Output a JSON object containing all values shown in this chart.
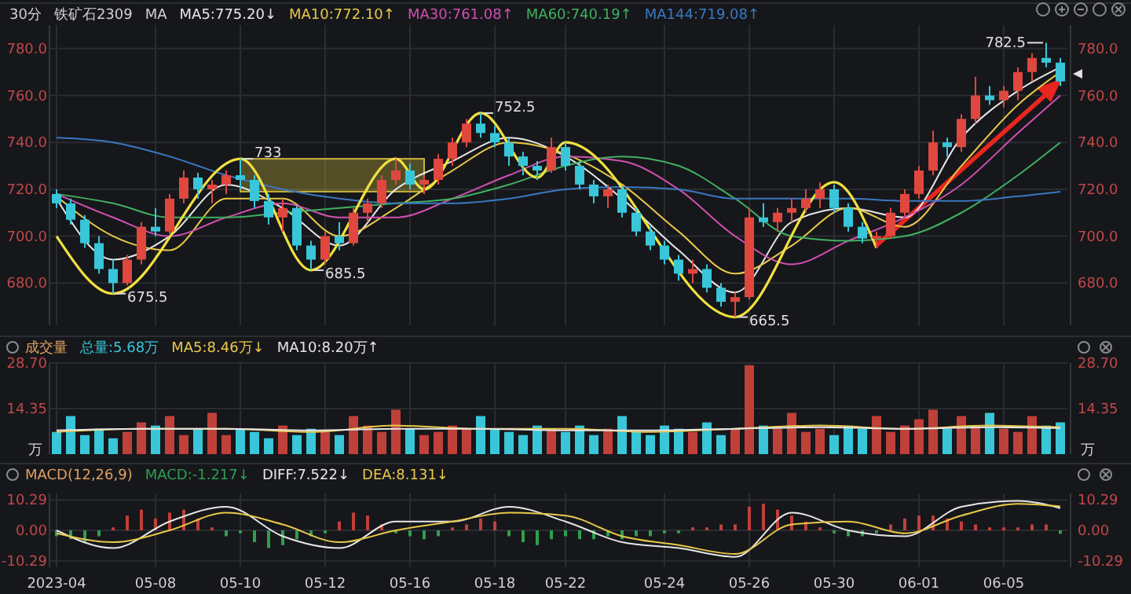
{
  "chart_data": [
    {
      "type": "candlestick",
      "title": "铁矿石2309",
      "subtitle": "30分",
      "legend_title": "MA",
      "legend": "top left",
      "grid": true,
      "tick_labels": "y",
      "categories": [
        null,
        null,
        null,
        null,
        null,
        null,
        null,
        null,
        null,
        null,
        null,
        null,
        null,
        null,
        null,
        null,
        null,
        null,
        null,
        null,
        null,
        null,
        null,
        null,
        null,
        null,
        null,
        null,
        null,
        null,
        null,
        null,
        null,
        null,
        null,
        null,
        null,
        null,
        null,
        null,
        null,
        null,
        null,
        null,
        null,
        null,
        null,
        null,
        null,
        null,
        null,
        null,
        null,
        null,
        null,
        null,
        null,
        null,
        null,
        null,
        null,
        null,
        null,
        null,
        null,
        null,
        null,
        null,
        null,
        null,
        null,
        null
      ],
      "ohlc": [
        [
          718,
          720,
          712,
          714
        ],
        [
          714,
          716,
          705,
          707
        ],
        [
          707,
          709,
          695,
          697
        ],
        [
          697,
          700,
          684,
          686
        ],
        [
          686,
          690,
          675.5,
          680
        ],
        [
          680,
          692,
          679,
          690
        ],
        [
          690,
          706,
          688,
          704
        ],
        [
          704,
          712,
          700,
          702
        ],
        [
          702,
          718,
          701,
          716
        ],
        [
          716,
          728,
          714,
          725
        ],
        [
          725,
          727,
          716,
          720
        ],
        [
          720,
          724,
          714,
          722
        ],
        [
          722,
          728,
          718,
          726
        ],
        [
          726,
          733,
          720,
          724
        ],
        [
          724,
          726,
          712,
          715
        ],
        [
          715,
          718,
          705,
          708
        ],
        [
          708,
          716,
          702,
          712
        ],
        [
          712,
          713,
          694,
          696
        ],
        [
          696,
          698,
          685.5,
          690
        ],
        [
          690,
          702,
          688,
          700
        ],
        [
          700,
          706,
          694,
          697
        ],
        [
          697,
          712,
          696,
          710
        ],
        [
          710,
          716,
          706,
          714
        ],
        [
          714,
          726,
          712,
          724
        ],
        [
          724,
          733,
          722,
          728
        ],
        [
          728,
          731,
          720,
          722
        ],
        [
          722,
          726,
          718,
          724
        ],
        [
          724,
          735,
          722,
          733
        ],
        [
          733,
          742,
          730,
          740
        ],
        [
          740,
          750,
          738,
          748
        ],
        [
          748,
          752.5,
          742,
          744
        ],
        [
          744,
          747,
          738,
          740
        ],
        [
          740,
          742,
          730,
          734
        ],
        [
          734,
          736,
          726,
          730
        ],
        [
          730,
          732,
          724,
          728
        ],
        [
          728,
          742,
          727,
          738
        ],
        [
          738,
          740,
          728,
          730
        ],
        [
          730,
          732,
          720,
          722
        ],
        [
          722,
          724,
          714,
          717
        ],
        [
          717,
          722,
          712,
          720
        ],
        [
          720,
          721,
          708,
          710
        ],
        [
          710,
          712,
          700,
          702
        ],
        [
          702,
          704,
          694,
          696
        ],
        [
          696,
          698,
          688,
          690
        ],
        [
          690,
          692,
          681,
          684
        ],
        [
          684,
          690,
          680,
          686
        ],
        [
          686,
          688,
          676,
          678
        ],
        [
          678,
          680,
          670,
          672
        ],
        [
          672,
          676,
          665.5,
          674
        ],
        [
          674,
          712,
          673,
          708
        ],
        [
          708,
          714,
          704,
          706
        ],
        [
          706,
          712,
          702,
          710
        ],
        [
          710,
          716,
          706,
          712
        ],
        [
          712,
          720,
          710,
          716
        ],
        [
          716,
          723,
          712,
          720
        ],
        [
          720,
          722,
          710,
          712
        ],
        [
          712,
          714,
          702,
          704
        ],
        [
          704,
          706,
          697,
          699
        ],
        [
          699,
          702,
          695,
          700
        ],
        [
          700,
          712,
          699,
          710
        ],
        [
          710,
          720,
          708,
          718
        ],
        [
          718,
          730,
          716,
          728
        ],
        [
          728,
          745,
          726,
          740
        ],
        [
          740,
          742,
          734,
          738
        ],
        [
          738,
          752,
          736,
          750
        ],
        [
          750,
          768,
          748,
          760
        ],
        [
          760,
          764,
          756,
          758
        ],
        [
          758,
          764,
          755,
          762
        ],
        [
          762,
          772,
          758,
          770
        ],
        [
          770,
          778,
          766,
          776
        ],
        [
          776,
          782.5,
          772,
          774
        ],
        [
          774,
          776,
          764,
          766
        ]
      ],
      "colors": [
        "#38c6d8",
        "#38c6d8",
        "#38c6d8",
        "#38c6d8",
        "#38c6d8",
        "#e0473e",
        "#e0473e",
        "#38c6d8",
        "#e0473e",
        "#e0473e",
        "#38c6d8",
        "#e0473e",
        "#e0473e",
        "#38c6d8",
        "#38c6d8",
        "#38c6d8",
        "#e0473e",
        "#38c6d8",
        "#38c6d8",
        "#e0473e",
        "#38c6d8",
        "#e0473e",
        "#e0473e",
        "#e0473e",
        "#e0473e",
        "#38c6d8",
        "#e0473e",
        "#e0473e",
        "#e0473e",
        "#e0473e",
        "#38c6d8",
        "#38c6d8",
        "#38c6d8",
        "#38c6d8",
        "#38c6d8",
        "#e0473e",
        "#38c6d8",
        "#38c6d8",
        "#38c6d8",
        "#e0473e",
        "#38c6d8",
        "#38c6d8",
        "#38c6d8",
        "#38c6d8",
        "#38c6d8",
        "#e0473e",
        "#38c6d8",
        "#38c6d8",
        "#e0473e",
        "#e0473e",
        "#38c6d8",
        "#e0473e",
        "#e0473e",
        "#e0473e",
        "#e0473e",
        "#38c6d8",
        "#38c6d8",
        "#38c6d8",
        "#e0473e",
        "#e0473e",
        "#e0473e",
        "#e0473e",
        "#e0473e",
        "#38c6d8",
        "#e0473e",
        "#e0473e",
        "#38c6d8",
        "#e0473e",
        "#e0473e",
        "#e0473e",
        "#38c6d8",
        "#38c6d8"
      ],
      "series": [
        {
          "type": "line",
          "name": "MA5:775.20↓",
          "color": "#e6e6e6",
          "values": [
            716,
            null,
            null,
            null,
            690,
            null,
            null,
            null,
            700,
            null,
            null,
            null,
            722,
            null,
            null,
            null,
            712,
            null,
            null,
            null,
            696,
            null,
            null,
            null,
            720,
            null,
            null,
            null,
            732,
            null,
            null,
            null,
            742,
            null,
            null,
            null,
            734,
            null,
            null,
            null,
            716,
            null,
            null,
            null,
            694,
            null,
            null,
            null,
            676,
            null,
            null,
            null,
            706,
            null,
            null,
            null,
            712,
            null,
            null,
            null,
            708,
            null,
            null,
            null,
            742,
            null,
            null,
            null,
            762,
            null,
            null,
            772
          ]
        },
        {
          "type": "line",
          "name": "MA10:772.10↑",
          "color": "#e8c848",
          "values": [
            717,
            null,
            null,
            null,
            700,
            null,
            null,
            null,
            694,
            null,
            null,
            null,
            716,
            null,
            null,
            null,
            716,
            null,
            null,
            null,
            700,
            null,
            null,
            null,
            712,
            null,
            null,
            null,
            728,
            null,
            null,
            null,
            740,
            null,
            null,
            null,
            735,
            null,
            null,
            null,
            722,
            null,
            null,
            null,
            702,
            null,
            null,
            null,
            684,
            null,
            null,
            null,
            696,
            null,
            null,
            null,
            712,
            null,
            null,
            null,
            704,
            null,
            null,
            null,
            730,
            null,
            null,
            null,
            756,
            null,
            null,
            770
          ]
        },
        {
          "type": "line",
          "name": "MA30:761.08↑",
          "color": "#d050b0",
          "values": [
            718,
            null,
            null,
            null,
            708,
            null,
            null,
            null,
            700,
            null,
            null,
            null,
            708,
            null,
            null,
            null,
            714,
            null,
            null,
            null,
            708,
            null,
            null,
            null,
            708,
            null,
            null,
            null,
            716,
            null,
            null,
            null,
            726,
            null,
            null,
            null,
            734,
            null,
            null,
            null,
            732,
            null,
            null,
            null,
            720,
            null,
            null,
            null,
            700,
            null,
            null,
            null,
            688,
            null,
            null,
            null,
            698,
            null,
            null,
            null,
            708,
            null,
            null,
            null,
            722,
            null,
            null,
            null,
            744,
            null,
            null,
            760
          ]
        },
        {
          "type": "line",
          "name": "MA60:740.19↑",
          "color": "#40b060",
          "values": [
            718,
            null,
            null,
            null,
            714,
            null,
            null,
            null,
            708,
            null,
            null,
            null,
            708,
            null,
            null,
            null,
            710,
            null,
            null,
            null,
            712,
            null,
            null,
            null,
            714,
            null,
            null,
            null,
            716,
            null,
            null,
            null,
            722,
            null,
            null,
            null,
            730,
            null,
            null,
            null,
            734,
            null,
            null,
            null,
            730,
            null,
            null,
            null,
            716,
            null,
            null,
            null,
            700,
            null,
            null,
            null,
            698,
            null,
            null,
            null,
            700,
            null,
            null,
            null,
            710,
            null,
            null,
            null,
            726,
            null,
            null,
            740
          ]
        },
        {
          "type": "line",
          "name": "MA144:719.08↑",
          "color": "#3a78c0",
          "values": [
            742,
            null,
            null,
            null,
            740,
            null,
            null,
            null,
            734,
            null,
            null,
            null,
            726,
            null,
            null,
            null,
            720,
            null,
            null,
            null,
            716,
            null,
            null,
            null,
            714,
            null,
            null,
            null,
            714,
            null,
            null,
            null,
            716,
            null,
            null,
            null,
            720,
            null,
            null,
            null,
            721,
            null,
            null,
            null,
            720,
            null,
            null,
            null,
            716,
            null,
            null,
            null,
            716,
            null,
            null,
            null,
            716,
            null,
            null,
            null,
            715,
            null,
            null,
            null,
            715,
            null,
            null,
            null,
            717,
            null,
            null,
            719
          ]
        },
        {
          "type": "line",
          "color": "#f0e040",
          "values": [
            700,
            null,
            null,
            null,
            675.5,
            null,
            null,
            null,
            null,
            null,
            null,
            null,
            null,
            733,
            null,
            null,
            null,
            null,
            685.5,
            null,
            null,
            null,
            null,
            null,
            733,
            null,
            720,
            null,
            null,
            null,
            752.5,
            null,
            null,
            null,
            725,
            null,
            740,
            null,
            null,
            null,
            null,
            null,
            null,
            null,
            null,
            null,
            null,
            null,
            665.5,
            null,
            null,
            null,
            null,
            null,
            null,
            723,
            null,
            null,
            695,
            null,
            null,
            null,
            null,
            null,
            null,
            null,
            null,
            null,
            null,
            null,
            null,
            null
          ]
        }
      ],
      "ylim": [
        662,
        790
      ],
      "yticks": [
        {
          "value": 680,
          "label": "680.0"
        },
        {
          "value": 700,
          "label": "700.0"
        },
        {
          "value": 720,
          "label": "720.0"
        },
        {
          "value": 740,
          "label": "740.0"
        },
        {
          "value": 760,
          "label": "760.0"
        },
        {
          "value": 780,
          "label": "780.0"
        }
      ],
      "bands": [
        {
          "axis": "y",
          "from": 719,
          "to": 733,
          "color": "#c8b43c"
        }
      ],
      "annotations": [
        "675.5",
        "733",
        "685.5",
        "752.5",
        "665.5",
        "782.5"
      ]
    },
    {
      "type": "bar",
      "title": "成交量",
      "legend": "top left",
      "grid": true,
      "tick_labels": "y",
      "ylabel": "万",
      "categories": [
        null,
        null,
        null,
        null,
        null,
        null,
        null,
        null,
        null,
        null,
        null,
        null,
        null,
        null,
        null,
        null,
        null,
        null,
        null,
        null,
        null,
        null,
        null,
        null,
        null,
        null,
        null,
        null,
        null,
        null,
        null,
        null,
        null,
        null,
        null,
        null,
        null,
        null,
        null,
        null,
        null,
        null,
        null,
        null,
        null,
        null,
        null,
        null,
        null,
        null,
        null,
        null,
        null,
        null,
        null,
        null,
        null,
        null,
        null,
        null,
        null,
        null,
        null,
        null,
        null,
        null,
        null,
        null,
        null,
        null,
        null,
        null
      ],
      "series": [
        {
          "type": "bar",
          "name": "总量:5.68万",
          "colors": [
            "#38c6d8",
            "#38c6d8",
            "#38c6d8",
            "#38c6d8",
            "#38c6d8",
            "#c0403a",
            "#c0403a",
            "#38c6d8",
            "#c0403a",
            "#c0403a",
            "#38c6d8",
            "#c0403a",
            "#c0403a",
            "#38c6d8",
            "#38c6d8",
            "#38c6d8",
            "#c0403a",
            "#38c6d8",
            "#38c6d8",
            "#c0403a",
            "#38c6d8",
            "#c0403a",
            "#c0403a",
            "#c0403a",
            "#c0403a",
            "#38c6d8",
            "#c0403a",
            "#c0403a",
            "#c0403a",
            "#c0403a",
            "#38c6d8",
            "#38c6d8",
            "#38c6d8",
            "#38c6d8",
            "#38c6d8",
            "#c0403a",
            "#38c6d8",
            "#38c6d8",
            "#38c6d8",
            "#c0403a",
            "#38c6d8",
            "#38c6d8",
            "#38c6d8",
            "#38c6d8",
            "#38c6d8",
            "#c0403a",
            "#38c6d8",
            "#38c6d8",
            "#c0403a",
            "#c0403a",
            "#38c6d8",
            "#c0403a",
            "#c0403a",
            "#c0403a",
            "#c0403a",
            "#38c6d8",
            "#38c6d8",
            "#38c6d8",
            "#c0403a",
            "#c0403a",
            "#c0403a",
            "#c0403a",
            "#c0403a",
            "#38c6d8",
            "#c0403a",
            "#c0403a",
            "#38c6d8",
            "#c0403a",
            "#c0403a",
            "#c0403a",
            "#38c6d8",
            "#38c6d8"
          ],
          "values": [
            7,
            12,
            6,
            8,
            5,
            7,
            10,
            9,
            12,
            6,
            8,
            13,
            6,
            8,
            7,
            5,
            9,
            6,
            8,
            7,
            6,
            12,
            9,
            7,
            14,
            8,
            6,
            7,
            9,
            8,
            12,
            8,
            7,
            6,
            9,
            8,
            7,
            9,
            6,
            8,
            12,
            7,
            6,
            9,
            8,
            7,
            10,
            6,
            8,
            28,
            9,
            8,
            13,
            7,
            8,
            6,
            9,
            8,
            12,
            7,
            9,
            11,
            14,
            8,
            12,
            9,
            13,
            8,
            7,
            12,
            9,
            10
          ]
        },
        {
          "type": "line",
          "name": "MA5:8.46万↓",
          "color": "#e8c848",
          "values": [
            7,
            null,
            null,
            null,
            null,
            null,
            8,
            null,
            null,
            null,
            null,
            null,
            8,
            null,
            null,
            null,
            null,
            null,
            7,
            null,
            null,
            null,
            null,
            null,
            9,
            null,
            null,
            null,
            null,
            null,
            8,
            null,
            null,
            null,
            null,
            null,
            8,
            null,
            null,
            null,
            null,
            null,
            7,
            null,
            null,
            null,
            null,
            null,
            8,
            null,
            null,
            null,
            null,
            null,
            9,
            null,
            null,
            null,
            null,
            null,
            8,
            null,
            null,
            null,
            null,
            null,
            9,
            null,
            null,
            null,
            null,
            8.5
          ]
        },
        {
          "type": "line",
          "name": "MA10:8.20万↑",
          "color": "#e6e6e6",
          "values": [
            7.5,
            null,
            null,
            null,
            null,
            null,
            8,
            null,
            null,
            null,
            null,
            null,
            8,
            null,
            null,
            null,
            null,
            null,
            7.5,
            null,
            null,
            null,
            null,
            null,
            8,
            null,
            null,
            null,
            null,
            null,
            8,
            null,
            null,
            null,
            null,
            null,
            7.5,
            null,
            null,
            null,
            null,
            null,
            7.5,
            null,
            null,
            null,
            null,
            null,
            8,
            null,
            null,
            null,
            null,
            null,
            8.5,
            null,
            null,
            null,
            null,
            null,
            8,
            null,
            null,
            null,
            null,
            null,
            8.5,
            null,
            null,
            null,
            null,
            8.2
          ]
        }
      ],
      "ylim": [
        0,
        28.7
      ],
      "yticks": [
        {
          "value": 14.35,
          "label": "14.35"
        },
        {
          "value": 28.7,
          "label": "28.70"
        }
      ]
    },
    {
      "type": "bar",
      "title": "MACD(12,26,9)",
      "legend": "top left",
      "grid": true,
      "categories": [
        "2023-04",
        null,
        null,
        null,
        null,
        null,
        null,
        "05-08",
        null,
        null,
        null,
        null,
        null,
        "05-10",
        null,
        null,
        null,
        null,
        null,
        "05-12",
        null,
        null,
        null,
        null,
        null,
        "05-16",
        null,
        null,
        null,
        null,
        null,
        "05-18",
        null,
        null,
        null,
        null,
        "05-22",
        null,
        null,
        null,
        null,
        null,
        null,
        "05-24",
        null,
        null,
        null,
        null,
        null,
        "05-26",
        null,
        null,
        null,
        null,
        null,
        "05-30",
        null,
        null,
        null,
        null,
        null,
        "06-01",
        null,
        null,
        null,
        null,
        null,
        "06-05",
        null,
        null,
        null,
        null
      ],
      "series": [
        {
          "type": "bar",
          "name": "MACD:-1.217↓",
          "colors": [
            "#2e9e4f",
            "#2e9e4f",
            "#2e9e4f",
            "#2e9e4f",
            "#c0403a",
            "#c0403a",
            "#c0403a",
            "#c0403a",
            "#c0403a",
            "#c0403a",
            "#c0403a",
            "#c0403a",
            "#2e9e4f",
            "#2e9e4f",
            "#2e9e4f",
            "#2e9e4f",
            "#2e9e4f",
            "#2e9e4f",
            "#2e9e4f",
            "#2e9e4f",
            "#c0403a",
            "#c0403a",
            "#c0403a",
            "#c0403a",
            "#2e9e4f",
            "#2e9e4f",
            "#2e9e4f",
            "#2e9e4f",
            "#c0403a",
            "#c0403a",
            "#c0403a",
            "#c0403a",
            "#2e9e4f",
            "#2e9e4f",
            "#2e9e4f",
            "#2e9e4f",
            "#2e9e4f",
            "#2e9e4f",
            "#2e9e4f",
            "#2e9e4f",
            "#2e9e4f",
            "#2e9e4f",
            "#2e9e4f",
            "#2e9e4f",
            "#2e9e4f",
            "#c0403a",
            "#c0403a",
            "#c0403a",
            "#c0403a",
            "#c0403a",
            "#c0403a",
            "#c0403a",
            "#c0403a",
            "#c0403a",
            "#c0403a",
            "#2e9e4f",
            "#2e9e4f",
            "#2e9e4f",
            "#2e9e4f",
            "#c0403a",
            "#c0403a",
            "#c0403a",
            "#c0403a",
            "#c0403a",
            "#c0403a",
            "#c0403a",
            "#c0403a",
            "#c0403a",
            "#c0403a",
            "#c0403a",
            "#c0403a",
            "#2e9e4f"
          ],
          "values": [
            -2,
            -3,
            -4,
            -2,
            1,
            5,
            7,
            4,
            6,
            7,
            4,
            1,
            -2,
            -1,
            -4,
            -6,
            -5,
            -3,
            -2,
            -1,
            3,
            6,
            5,
            2,
            -1,
            -2,
            -3,
            -2,
            1,
            2,
            4,
            3,
            -2,
            -4,
            -5,
            -3,
            -2,
            -3,
            -3,
            -2,
            -3,
            -2,
            -2,
            -1,
            -1,
            1,
            1,
            2,
            2,
            8,
            9,
            7,
            5,
            3,
            1,
            -1,
            -2,
            -2,
            -1,
            2,
            4,
            5,
            5,
            4,
            3,
            2,
            1,
            1,
            1,
            2,
            2,
            -1.2
          ]
        },
        {
          "type": "line",
          "name": "DIFF:7.522↓",
          "color": "#e6e6e6",
          "values": [
            0,
            null,
            null,
            null,
            -6,
            null,
            null,
            null,
            3,
            null,
            null,
            null,
            8,
            null,
            null,
            null,
            -2,
            null,
            null,
            null,
            -6,
            null,
            null,
            null,
            3,
            null,
            null,
            null,
            3,
            null,
            null,
            null,
            8,
            null,
            null,
            null,
            3,
            null,
            null,
            null,
            -4,
            null,
            null,
            null,
            -6,
            null,
            null,
            null,
            -9,
            null,
            null,
            null,
            6,
            null,
            null,
            null,
            0,
            null,
            null,
            null,
            -2,
            null,
            null,
            null,
            8,
            null,
            null,
            null,
            10,
            null,
            null,
            7.5
          ]
        },
        {
          "type": "line",
          "name": "DEA:8.131↓",
          "color": "#e8c848",
          "values": [
            -1,
            null,
            null,
            null,
            -4,
            null,
            null,
            null,
            0,
            null,
            null,
            null,
            6,
            null,
            null,
            null,
            2,
            null,
            null,
            null,
            -4,
            null,
            null,
            null,
            0,
            null,
            null,
            null,
            3,
            null,
            null,
            null,
            6,
            null,
            null,
            null,
            5,
            null,
            null,
            null,
            -2,
            null,
            null,
            null,
            -5,
            null,
            null,
            null,
            -8,
            null,
            null,
            null,
            2,
            null,
            null,
            null,
            3,
            null,
            null,
            null,
            -1,
            null,
            null,
            null,
            5,
            null,
            null,
            null,
            9,
            null,
            null,
            8.1
          ]
        }
      ],
      "ylim": [
        -12.5,
        12.5
      ],
      "yticks": [
        {
          "value": -10.29,
          "label": "-10.29"
        },
        {
          "value": 0,
          "label": "0.00"
        },
        {
          "value": 10.29,
          "label": "10.29"
        }
      ]
    }
  ]
}
